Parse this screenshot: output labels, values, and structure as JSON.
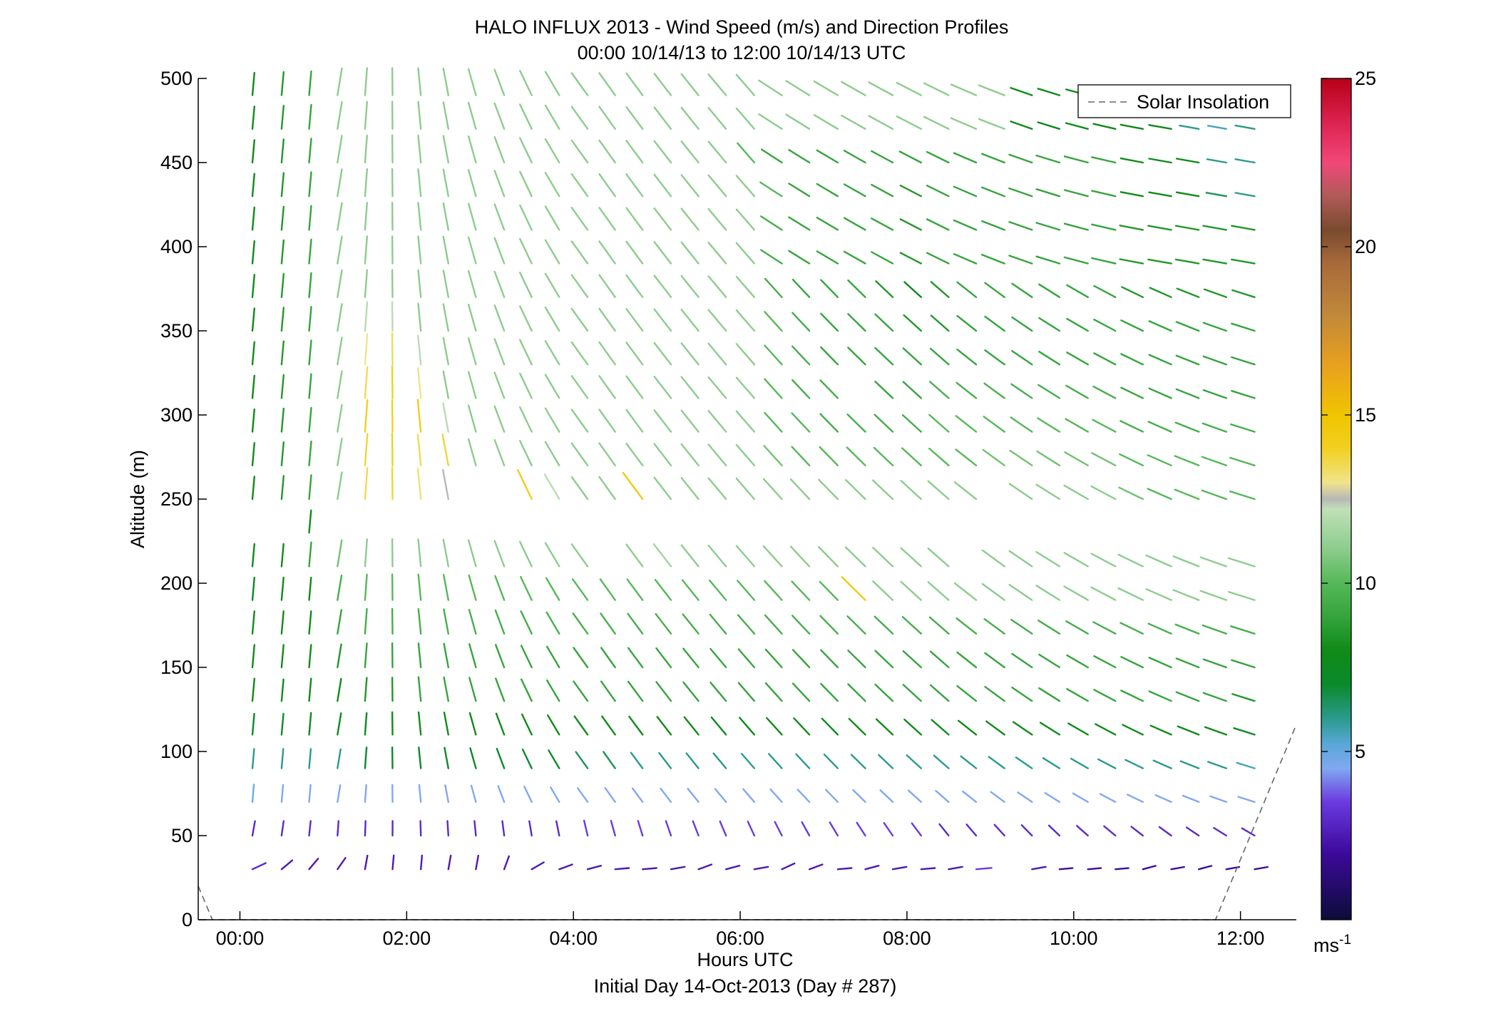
{
  "chart_data": {
    "type": "wind-barb-profile",
    "title": "HALO INFLUX 2013 - Wind Speed (m/s) and Direction Profiles",
    "subtitle": "00:00 10/14/13 to 12:00 10/14/13  UTC",
    "xlabel": "Hours UTC",
    "xlabel2": "Initial Day 14-Oct-2013 (Day # 287)",
    "ylabel": "Altitude (m)",
    "xlim": [
      -0.5,
      12.67
    ],
    "ylim": [
      0,
      500
    ],
    "x_ticks": [
      0,
      2,
      4,
      6,
      8,
      10,
      12
    ],
    "x_tick_labels": [
      "00:00",
      "02:00",
      "04:00",
      "06:00",
      "08:00",
      "10:00",
      "12:00"
    ],
    "y_ticks": [
      0,
      50,
      100,
      150,
      200,
      250,
      300,
      350,
      400,
      450,
      500
    ],
    "y_tick_labels": [
      "0",
      "50",
      "100",
      "150",
      "200",
      "250",
      "300",
      "350",
      "400",
      "450",
      "500"
    ],
    "legend": {
      "label": "Solar Insolation",
      "placement": "top-right",
      "style": "dashed",
      "color": "#666666"
    },
    "colorbar": {
      "range": [
        0,
        25
      ],
      "ticks": [
        5,
        10,
        15,
        20,
        25
      ],
      "tick_labels": [
        "5",
        "10",
        "15",
        "20",
        "25"
      ],
      "unit_base": "ms",
      "unit_exp": "-1",
      "stops": [
        [
          0,
          "#0c0c3a"
        ],
        [
          2,
          "#3d0a9c"
        ],
        [
          3.5,
          "#6a3ae0"
        ],
        [
          4.5,
          "#80a8f0"
        ],
        [
          5.2,
          "#5aa8d8"
        ],
        [
          6,
          "#2a9a8a"
        ],
        [
          7,
          "#0a8a2a"
        ],
        [
          8,
          "#108a18"
        ],
        [
          9,
          "#35a43c"
        ],
        [
          10,
          "#55b858"
        ],
        [
          11,
          "#8ccc8c"
        ],
        [
          12.2,
          "#c0e0b8"
        ],
        [
          12.5,
          "#b8b8b8"
        ],
        [
          13,
          "#f0e48a"
        ],
        [
          14,
          "#f2d020"
        ],
        [
          15,
          "#f0c400"
        ],
        [
          16.5,
          "#e8a020"
        ],
        [
          18,
          "#c0883a"
        ],
        [
          19.5,
          "#a86a3a"
        ],
        [
          20.5,
          "#7a4a2e"
        ],
        [
          21.5,
          "#b05a58"
        ],
        [
          22.5,
          "#f04878"
        ],
        [
          23.5,
          "#e02858"
        ],
        [
          25,
          "#b80018"
        ]
      ]
    },
    "solar_insolation": [
      [
        -0.5,
        20
      ],
      [
        -0.33,
        0
      ],
      [
        11.7,
        0
      ],
      [
        12.67,
        116
      ]
    ],
    "time_step_hours": 0.333,
    "columns": [
      {
        "t": 0.15,
        "speed": [
          3,
          3,
          4.8,
          6,
          7,
          8,
          8,
          8,
          8,
          8,
          null,
          8,
          8,
          8,
          8,
          8,
          8,
          8,
          8,
          8,
          8,
          8,
          8,
          8
        ]
      },
      {
        "t": 0.5,
        "speed": [
          2.5,
          3,
          4.5,
          6,
          7,
          7.5,
          8,
          8,
          8,
          8,
          null,
          8.5,
          8.5,
          8.5,
          8.5,
          8.5,
          8.5,
          8.5,
          8.5,
          8.5,
          8.5,
          8.5,
          8.5,
          8.5
        ]
      },
      {
        "t": 0.83,
        "speed": [
          2.5,
          3,
          4.5,
          6,
          7.5,
          8,
          8,
          8,
          8,
          9,
          8,
          9,
          9,
          9,
          9,
          9,
          9,
          9,
          9,
          9,
          9,
          9,
          9,
          9
        ]
      },
      {
        "t": 1.17,
        "speed": [
          2.5,
          3,
          4.5,
          6,
          7.5,
          8,
          8.5,
          9,
          9.5,
          10.5,
          null,
          11,
          11,
          11,
          11,
          11,
          11,
          11,
          11,
          11,
          11,
          11,
          11,
          11
        ]
      },
      {
        "t": 1.5,
        "speed": [
          2.5,
          3,
          4.5,
          7,
          7.5,
          8.5,
          9,
          9.5,
          10,
          11,
          null,
          13.5,
          13.8,
          14,
          13.5,
          13,
          12,
          11,
          11,
          11,
          11,
          11,
          11,
          11
        ]
      },
      {
        "t": 1.83,
        "speed": [
          2.5,
          3,
          4.5,
          7,
          8,
          8.5,
          9,
          9.5,
          10,
          11,
          null,
          13.8,
          14,
          14,
          14,
          13.5,
          12,
          11,
          11,
          11,
          11,
          11,
          11,
          11
        ]
      },
      {
        "t": 2.17,
        "speed": [
          2.5,
          3,
          4.5,
          7,
          8,
          9,
          9,
          9.5,
          10,
          11,
          null,
          13.2,
          13.5,
          14.2,
          13,
          12,
          11,
          11,
          11,
          11,
          11,
          11,
          11,
          11
        ]
      },
      {
        "t": 2.5,
        "speed": [
          2.5,
          3,
          4.5,
          7,
          8,
          9,
          9,
          9.5,
          10,
          11,
          null,
          12.5,
          13.8,
          12,
          11,
          11,
          11,
          11,
          11,
          11,
          11,
          11,
          11,
          11
        ]
      },
      {
        "t": 2.83,
        "speed": [
          2.5,
          3,
          4.5,
          7,
          8,
          9,
          9,
          9.5,
          10,
          11,
          null,
          null,
          11,
          11,
          11,
          11,
          11,
          11,
          11,
          11,
          11,
          11,
          11,
          11
        ]
      },
      {
        "t": 3.17,
        "speed": [
          2.5,
          3,
          4.5,
          7,
          8,
          9,
          9,
          9.5,
          10,
          11,
          null,
          null,
          11,
          11,
          11,
          11,
          11,
          11,
          11,
          11,
          11,
          11,
          11,
          11
        ]
      },
      {
        "t": 3.5,
        "speed": [
          2.5,
          3,
          4.5,
          7,
          8,
          9,
          9,
          9.5,
          10,
          11,
          null,
          14.2,
          11,
          11,
          11,
          11,
          11,
          11,
          11,
          11,
          11,
          11,
          11,
          11
        ]
      },
      {
        "t": 3.83,
        "speed": [
          2.5,
          3,
          4.5,
          7,
          8,
          9,
          9,
          9.5,
          10,
          11,
          null,
          12,
          11,
          11,
          11,
          11,
          11,
          11,
          11,
          11,
          11,
          11,
          11,
          11
        ]
      },
      {
        "t": 4.17,
        "speed": [
          2.5,
          3.5,
          4.5,
          6.5,
          8,
          9,
          9,
          9.5,
          10,
          11,
          null,
          11,
          11,
          11,
          11,
          11,
          11,
          11,
          11,
          11,
          11,
          11,
          11,
          11
        ]
      },
      {
        "t": 4.5,
        "speed": [
          2.5,
          3.5,
          4.5,
          6.5,
          8,
          9,
          9,
          9.5,
          10,
          null,
          null,
          11,
          11,
          11,
          11,
          11,
          11,
          11,
          11,
          11,
          11,
          11,
          11,
          11
        ]
      },
      {
        "t": 4.83,
        "speed": [
          2.5,
          3.5,
          4.5,
          6,
          8,
          9,
          9,
          9.5,
          10,
          11,
          null,
          14.5,
          11,
          11,
          11,
          11,
          11,
          11,
          11,
          11,
          11,
          11,
          11,
          11
        ]
      },
      {
        "t": 5.17,
        "speed": [
          2.5,
          3.5,
          4.5,
          6,
          8,
          9,
          9,
          9.5,
          10,
          11.5,
          null,
          11,
          11,
          11,
          11,
          11,
          11,
          11,
          11,
          11,
          11,
          11,
          11,
          11
        ]
      },
      {
        "t": 5.5,
        "speed": [
          2.5,
          3.5,
          4.5,
          6,
          8,
          9,
          9,
          9.5,
          10,
          11,
          null,
          11,
          11,
          11,
          11,
          11,
          11,
          11,
          11,
          11,
          11,
          11,
          11,
          11
        ]
      },
      {
        "t": 5.83,
        "speed": [
          2.5,
          3.5,
          4.5,
          6,
          8,
          9,
          9,
          9.5,
          10,
          11,
          null,
          11,
          11,
          11,
          11,
          11,
          11,
          11,
          11,
          11,
          11,
          11,
          11,
          11
        ]
      },
      {
        "t": 6.17,
        "speed": [
          2.5,
          3.5,
          4.5,
          6,
          8,
          9,
          9,
          9.5,
          10,
          11,
          null,
          11,
          11,
          11,
          11,
          11,
          11,
          11,
          11,
          11,
          11,
          10,
          11,
          11
        ]
      },
      {
        "t": 6.5,
        "speed": [
          2.5,
          3.5,
          4.5,
          6,
          8,
          9,
          9,
          9.5,
          10,
          11,
          null,
          11,
          10.5,
          10,
          10,
          10,
          10,
          9.5,
          9.5,
          9.5,
          10,
          9,
          11,
          11
        ]
      },
      {
        "t": 6.83,
        "speed": [
          2.5,
          3.5,
          4.5,
          6,
          8,
          9,
          9,
          9.5,
          10,
          11,
          null,
          11,
          10,
          10,
          9.5,
          9.5,
          9.5,
          9,
          9,
          9,
          9,
          9,
          11,
          11
        ]
      },
      {
        "t": 7.17,
        "speed": [
          2.5,
          3.5,
          4.5,
          6,
          8,
          9,
          9,
          9.5,
          10,
          11,
          null,
          11,
          10,
          9.5,
          9.5,
          9,
          9,
          9,
          9,
          9,
          9,
          9,
          11,
          11
        ]
      },
      {
        "t": 7.5,
        "speed": [
          2.5,
          3.5,
          4.5,
          6,
          8,
          9,
          9,
          9.5,
          14.5,
          11,
          null,
          11,
          10,
          9.5,
          null,
          9,
          9,
          9,
          9,
          9,
          9,
          9,
          11,
          11
        ]
      },
      {
        "t": 7.83,
        "speed": [
          2.5,
          3.5,
          4.5,
          6,
          8,
          9,
          9,
          9.5,
          11,
          11,
          null,
          11,
          10,
          9.5,
          9,
          9,
          9,
          8.5,
          9,
          9,
          9,
          9,
          11,
          11
        ]
      },
      {
        "t": 8.17,
        "speed": [
          2.5,
          3.5,
          4.5,
          6,
          8,
          9,
          9,
          9.5,
          11,
          11,
          null,
          11,
          10,
          9.5,
          9,
          9,
          8.5,
          8,
          8.5,
          8.5,
          8.5,
          9,
          11,
          11
        ]
      },
      {
        "t": 8.5,
        "speed": [
          2.5,
          3,
          4.5,
          6,
          8,
          9,
          9,
          9.5,
          11,
          11,
          null,
          11,
          10,
          10,
          9.5,
          9,
          8.5,
          8.5,
          9,
          9,
          9,
          9,
          11,
          11
        ]
      },
      {
        "t": 8.83,
        "speed": [
          3.5,
          3,
          4.5,
          6,
          8,
          9,
          9,
          9.5,
          11,
          null,
          null,
          11,
          10,
          10,
          9.5,
          9,
          9,
          9,
          9,
          9,
          9,
          9,
          11,
          11
        ]
      },
      {
        "t": 9.17,
        "speed": [
          null,
          3,
          4.5,
          6,
          8,
          9,
          9,
          9.5,
          11,
          11,
          null,
          null,
          10.5,
          10,
          9.5,
          9,
          9,
          9,
          9,
          9,
          9,
          9,
          11,
          11
        ]
      },
      {
        "t": 9.5,
        "speed": [
          2.5,
          3,
          4.5,
          6,
          8,
          9,
          9,
          9.5,
          11,
          11,
          null,
          11,
          10.5,
          10,
          9.5,
          9,
          9,
          9,
          9,
          9,
          9,
          9,
          8,
          8
        ]
      },
      {
        "t": 9.83,
        "speed": [
          2,
          3,
          4.5,
          6,
          8,
          9,
          9,
          9.5,
          11,
          11,
          null,
          11,
          10.5,
          10,
          9.5,
          9,
          9,
          9,
          9,
          9,
          9,
          9,
          8,
          8
        ]
      },
      {
        "t": 10.17,
        "speed": [
          2,
          3,
          4.5,
          6,
          8,
          9,
          9,
          9.5,
          11,
          11,
          null,
          11,
          10.5,
          10,
          9.5,
          9,
          9,
          9,
          9,
          9,
          9,
          9,
          8,
          8
        ]
      },
      {
        "t": 10.5,
        "speed": [
          2,
          3,
          4.5,
          6,
          8,
          9,
          9,
          9.5,
          11,
          11,
          null,
          11,
          10.5,
          10,
          9.5,
          9,
          9,
          9,
          9,
          9,
          9,
          9,
          8,
          8
        ]
      },
      {
        "t": 10.83,
        "speed": [
          2,
          3,
          4.5,
          6,
          8,
          9,
          9,
          9.5,
          11,
          11,
          null,
          10.5,
          10,
          9.5,
          9,
          9,
          9,
          8.5,
          8.5,
          8.5,
          8,
          8,
          8,
          8
        ]
      },
      {
        "t": 11.17,
        "speed": [
          2,
          3,
          4.5,
          6,
          8,
          9,
          9,
          9.5,
          11,
          11,
          null,
          10,
          10,
          9.5,
          9,
          9,
          9,
          8.5,
          8.5,
          8.5,
          8,
          8,
          8,
          8
        ]
      },
      {
        "t": 11.5,
        "speed": [
          2,
          3,
          4.5,
          6,
          8,
          9,
          9,
          9.5,
          11,
          11,
          null,
          10,
          10,
          9.5,
          9,
          9,
          9,
          8.5,
          8.5,
          8.5,
          8,
          8,
          6,
          6
        ]
      },
      {
        "t": 11.83,
        "speed": [
          2,
          3,
          4.5,
          6,
          8,
          9,
          9,
          9.5,
          11,
          11,
          null,
          10,
          10,
          9.5,
          9,
          9,
          9,
          8.5,
          8.5,
          8.5,
          6.5,
          6,
          5.5,
          7
        ]
      },
      {
        "t": 12.17,
        "speed": [
          2,
          3,
          4.5,
          5.5,
          7.5,
          8.5,
          9,
          9.5,
          11,
          11,
          null,
          10,
          10,
          9.5,
          9,
          9,
          9,
          8.5,
          8.5,
          8.5,
          6,
          6,
          6,
          7
        ]
      }
    ]
  }
}
